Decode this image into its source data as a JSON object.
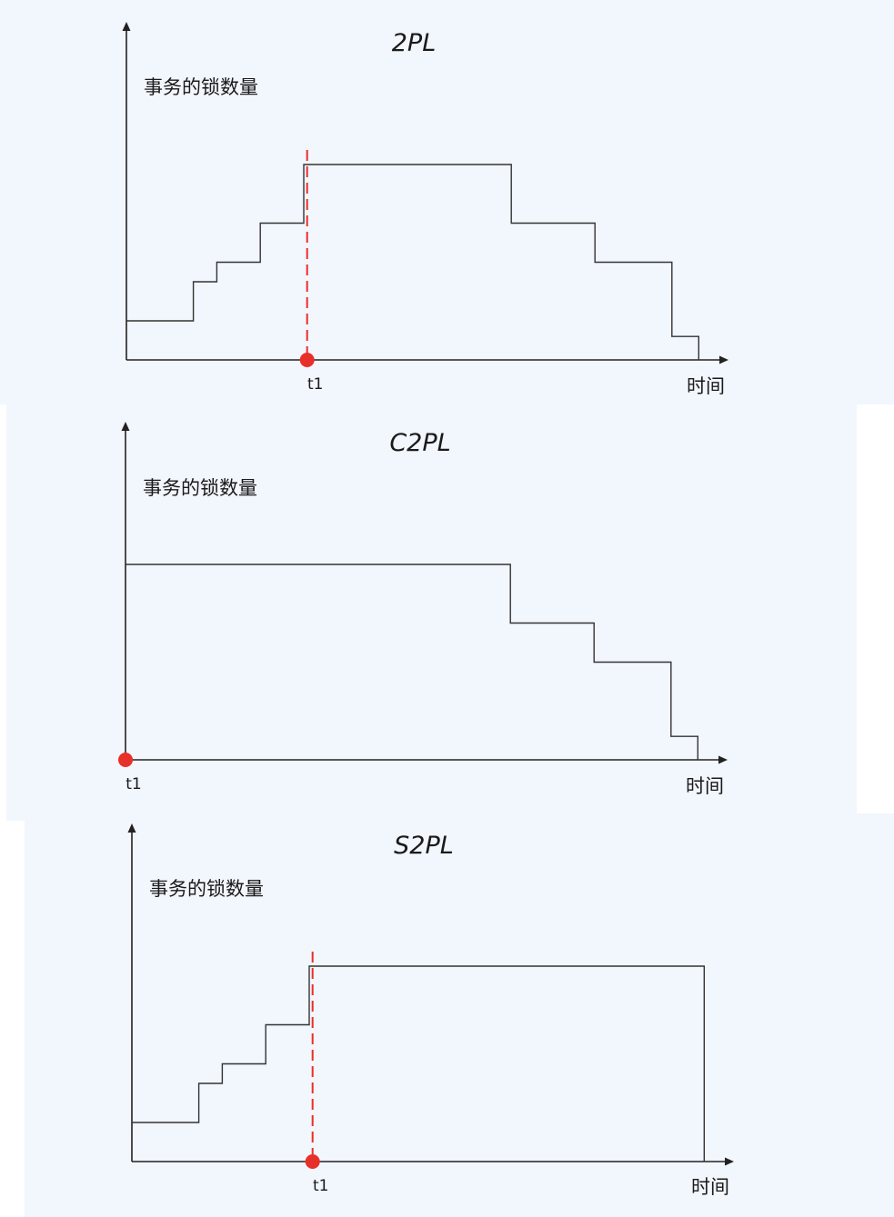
{
  "diagram": {
    "panels": [
      {
        "title": "2PL",
        "y_axis_label": "事务的锁数量",
        "x_axis_label": "时间",
        "marker_label": "t1",
        "marker_time": 5.4,
        "has_dashed_line": true,
        "x_max": 18,
        "y_max": 9,
        "steps": [
          {
            "t": 0,
            "locks": 1
          },
          {
            "t": 2,
            "locks": 2
          },
          {
            "t": 2.7,
            "locks": 2.5
          },
          {
            "t": 4,
            "locks": 3.5
          },
          {
            "t": 5.3,
            "locks": 5
          },
          {
            "t": 11.5,
            "locks": 3.5
          },
          {
            "t": 14,
            "locks": 2.5
          },
          {
            "t": 16.3,
            "locks": 0.6
          },
          {
            "t": 17.1,
            "locks": 0
          }
        ]
      },
      {
        "title": "C2PL",
        "y_axis_label": "事务的锁数量",
        "x_axis_label": "时间",
        "marker_label": "t1",
        "marker_time": 0,
        "has_dashed_line": false,
        "x_max": 18,
        "y_max": 9,
        "steps": [
          {
            "t": 0,
            "locks": 5
          },
          {
            "t": 11.5,
            "locks": 3.5
          },
          {
            "t": 14,
            "locks": 2.5
          },
          {
            "t": 16.3,
            "locks": 0.6
          },
          {
            "t": 17.1,
            "locks": 0
          }
        ]
      },
      {
        "title": "S2PL",
        "y_axis_label": "事务的锁数量",
        "x_axis_label": "时间",
        "marker_label": "t1",
        "marker_time": 5.4,
        "has_dashed_line": true,
        "x_max": 18,
        "y_max": 9,
        "steps": [
          {
            "t": 0,
            "locks": 1
          },
          {
            "t": 2,
            "locks": 2
          },
          {
            "t": 2.7,
            "locks": 2.5
          },
          {
            "t": 4,
            "locks": 3.5
          },
          {
            "t": 5.3,
            "locks": 5
          },
          {
            "t": 17.1,
            "locks": 0
          }
        ]
      }
    ]
  },
  "colors": {
    "panel_background": "#f2f6fd",
    "axis": "#222222",
    "step_line": "#333333",
    "marker": "#e8302a",
    "dashed_line": "#e8302a",
    "text": "#1a1a1a"
  }
}
